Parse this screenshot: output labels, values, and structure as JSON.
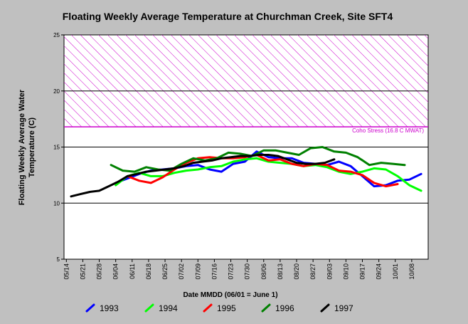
{
  "chart_data": {
    "type": "line",
    "title": "Floating Weekly Average Temperature at Churchman Creek, Site SFT4",
    "xlabel": "Date MMDD (06/01 = June 1)",
    "ylabel": "Floating Weekly Average Water Temperature (C)",
    "ylim": [
      5,
      25
    ],
    "yticks": [
      5,
      10,
      15,
      20,
      25
    ],
    "grid_y": [
      10,
      15,
      20
    ],
    "x_tick_labels": [
      "05/14",
      "05/21",
      "05/28",
      "06/04",
      "06/11",
      "06/18",
      "06/25",
      "07/02",
      "07/09",
      "07/16",
      "07/23",
      "07/30",
      "08/06",
      "08/13",
      "08/20",
      "08/27",
      "09/03",
      "09/10",
      "09/17",
      "09/24",
      "10/01",
      "10/08"
    ],
    "x_tick_days": [
      134,
      141,
      148,
      155,
      162,
      169,
      176,
      183,
      190,
      197,
      204,
      211,
      218,
      225,
      232,
      239,
      246,
      253,
      260,
      267,
      274,
      281
    ],
    "xlim": [
      133,
      288
    ],
    "threshold": {
      "label": "Coho Stress (16.8 C MWAT)",
      "value": 16.8,
      "band_top": 25,
      "color": "#cc00cc"
    },
    "legend_position": "bottom",
    "series": [
      {
        "name": "1993",
        "color": "#0000ff",
        "x": [
          155,
          160,
          165,
          170,
          175,
          180,
          185,
          190,
          195,
          200,
          205,
          210,
          215,
          220,
          225,
          230,
          235,
          240,
          245,
          250,
          255,
          260,
          265,
          270,
          275,
          280,
          285
        ],
        "y": [
          11.8,
          12.2,
          12.6,
          12.9,
          13.0,
          13.1,
          13.3,
          13.4,
          13.0,
          12.8,
          13.5,
          13.7,
          14.6,
          14.1,
          14.0,
          14.0,
          13.6,
          13.5,
          13.4,
          13.7,
          13.3,
          12.4,
          11.5,
          11.6,
          12.0,
          12.1,
          12.6
        ]
      },
      {
        "name": "1994",
        "color": "#00ff00",
        "x": [
          155,
          160,
          165,
          170,
          175,
          180,
          185,
          190,
          195,
          200,
          205,
          210,
          215,
          220,
          225,
          230,
          235,
          240,
          245,
          250,
          255,
          260,
          265,
          270,
          275,
          280,
          285
        ],
        "y": [
          11.6,
          12.4,
          12.7,
          12.4,
          12.4,
          12.7,
          12.9,
          13.0,
          13.2,
          13.3,
          13.7,
          13.9,
          14.0,
          13.7,
          13.6,
          13.5,
          13.3,
          13.4,
          13.2,
          12.8,
          12.6,
          12.8,
          13.1,
          13.0,
          12.4,
          11.6,
          11.1
        ]
      },
      {
        "name": "1995",
        "color": "#ff0000",
        "x": [
          160,
          165,
          170,
          175,
          180,
          185,
          190,
          195,
          200,
          205,
          210,
          215,
          220,
          225,
          230,
          235,
          240,
          245,
          250,
          255,
          260,
          265,
          270,
          275
        ],
        "y": [
          12.4,
          12.0,
          11.8,
          12.3,
          13.0,
          13.6,
          14.0,
          14.1,
          14.0,
          14.0,
          14.1,
          14.3,
          13.8,
          13.9,
          13.5,
          13.3,
          13.5,
          13.4,
          12.9,
          12.8,
          12.5,
          11.8,
          11.5,
          11.7
        ]
      },
      {
        "name": "1996",
        "color": "#008000",
        "x": [
          153,
          158,
          163,
          168,
          173,
          178,
          183,
          188,
          193,
          198,
          203,
          208,
          213,
          218,
          223,
          228,
          233,
          238,
          243,
          248,
          253,
          258,
          263,
          268,
          273,
          278
        ],
        "y": [
          13.4,
          12.9,
          12.8,
          13.2,
          13.0,
          12.9,
          13.5,
          14.0,
          13.8,
          14.0,
          14.5,
          14.4,
          14.2,
          14.7,
          14.7,
          14.5,
          14.3,
          14.9,
          15.0,
          14.6,
          14.5,
          14.1,
          13.4,
          13.6,
          13.5,
          13.4
        ]
      },
      {
        "name": "1997",
        "color": "#000000",
        "x": [
          136,
          140,
          144,
          148,
          152,
          156,
          160,
          164,
          168,
          172,
          176,
          180,
          184,
          188,
          192,
          196,
          200,
          204,
          208,
          212,
          216,
          220,
          224,
          228,
          232,
          236,
          240,
          244,
          248
        ],
        "y": [
          10.6,
          10.8,
          11.0,
          11.1,
          11.5,
          11.9,
          12.4,
          12.6,
          12.8,
          12.9,
          13.0,
          13.1,
          13.3,
          13.6,
          13.7,
          13.8,
          14.0,
          14.1,
          14.2,
          14.2,
          14.3,
          14.3,
          14.2,
          13.9,
          13.6,
          13.5,
          13.5,
          13.6,
          13.9
        ]
      }
    ]
  }
}
